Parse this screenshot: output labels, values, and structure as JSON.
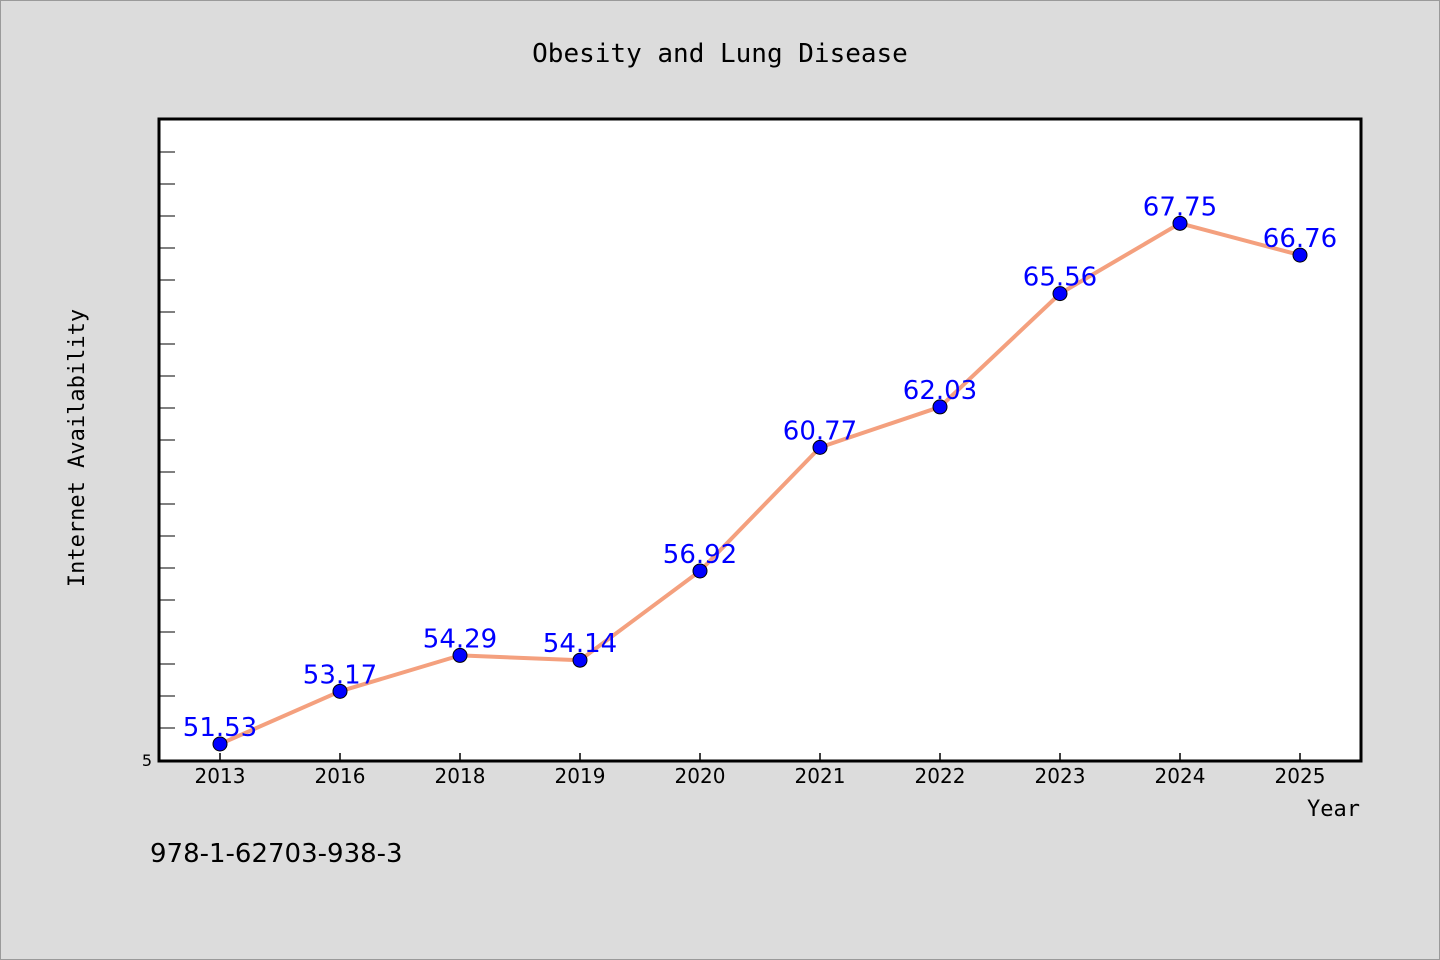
{
  "chart_data": {
    "type": "line",
    "title": "Obesity and Lung Disease",
    "xlabel": "Year",
    "ylabel": "Internet Availability",
    "categories": [
      "2013",
      "2016",
      "2018",
      "2019",
      "2020",
      "2021",
      "2022",
      "2023",
      "2024",
      "2025"
    ],
    "series": [
      {
        "values": [
          51.53,
          53.17,
          54.29,
          54.14,
          56.92,
          60.77,
          62.03,
          65.56,
          67.75,
          66.76
        ]
      }
    ],
    "data_labels": [
      "51.53",
      "53.17",
      "54.29",
      "54.14",
      "56.92",
      "60.77",
      "62.03",
      "65.56",
      "67.75",
      "66.76"
    ],
    "y_tick_label": "5",
    "ylim": [
      51,
      71
    ],
    "grid": false,
    "legend": "none",
    "colors": {
      "line": "#f4a07e",
      "marker": "#0000ff",
      "label": "#0000ff",
      "background": "#dcdcdc",
      "plot_background": "#ffffff"
    }
  },
  "footer_text": "978-1-62703-938-3"
}
